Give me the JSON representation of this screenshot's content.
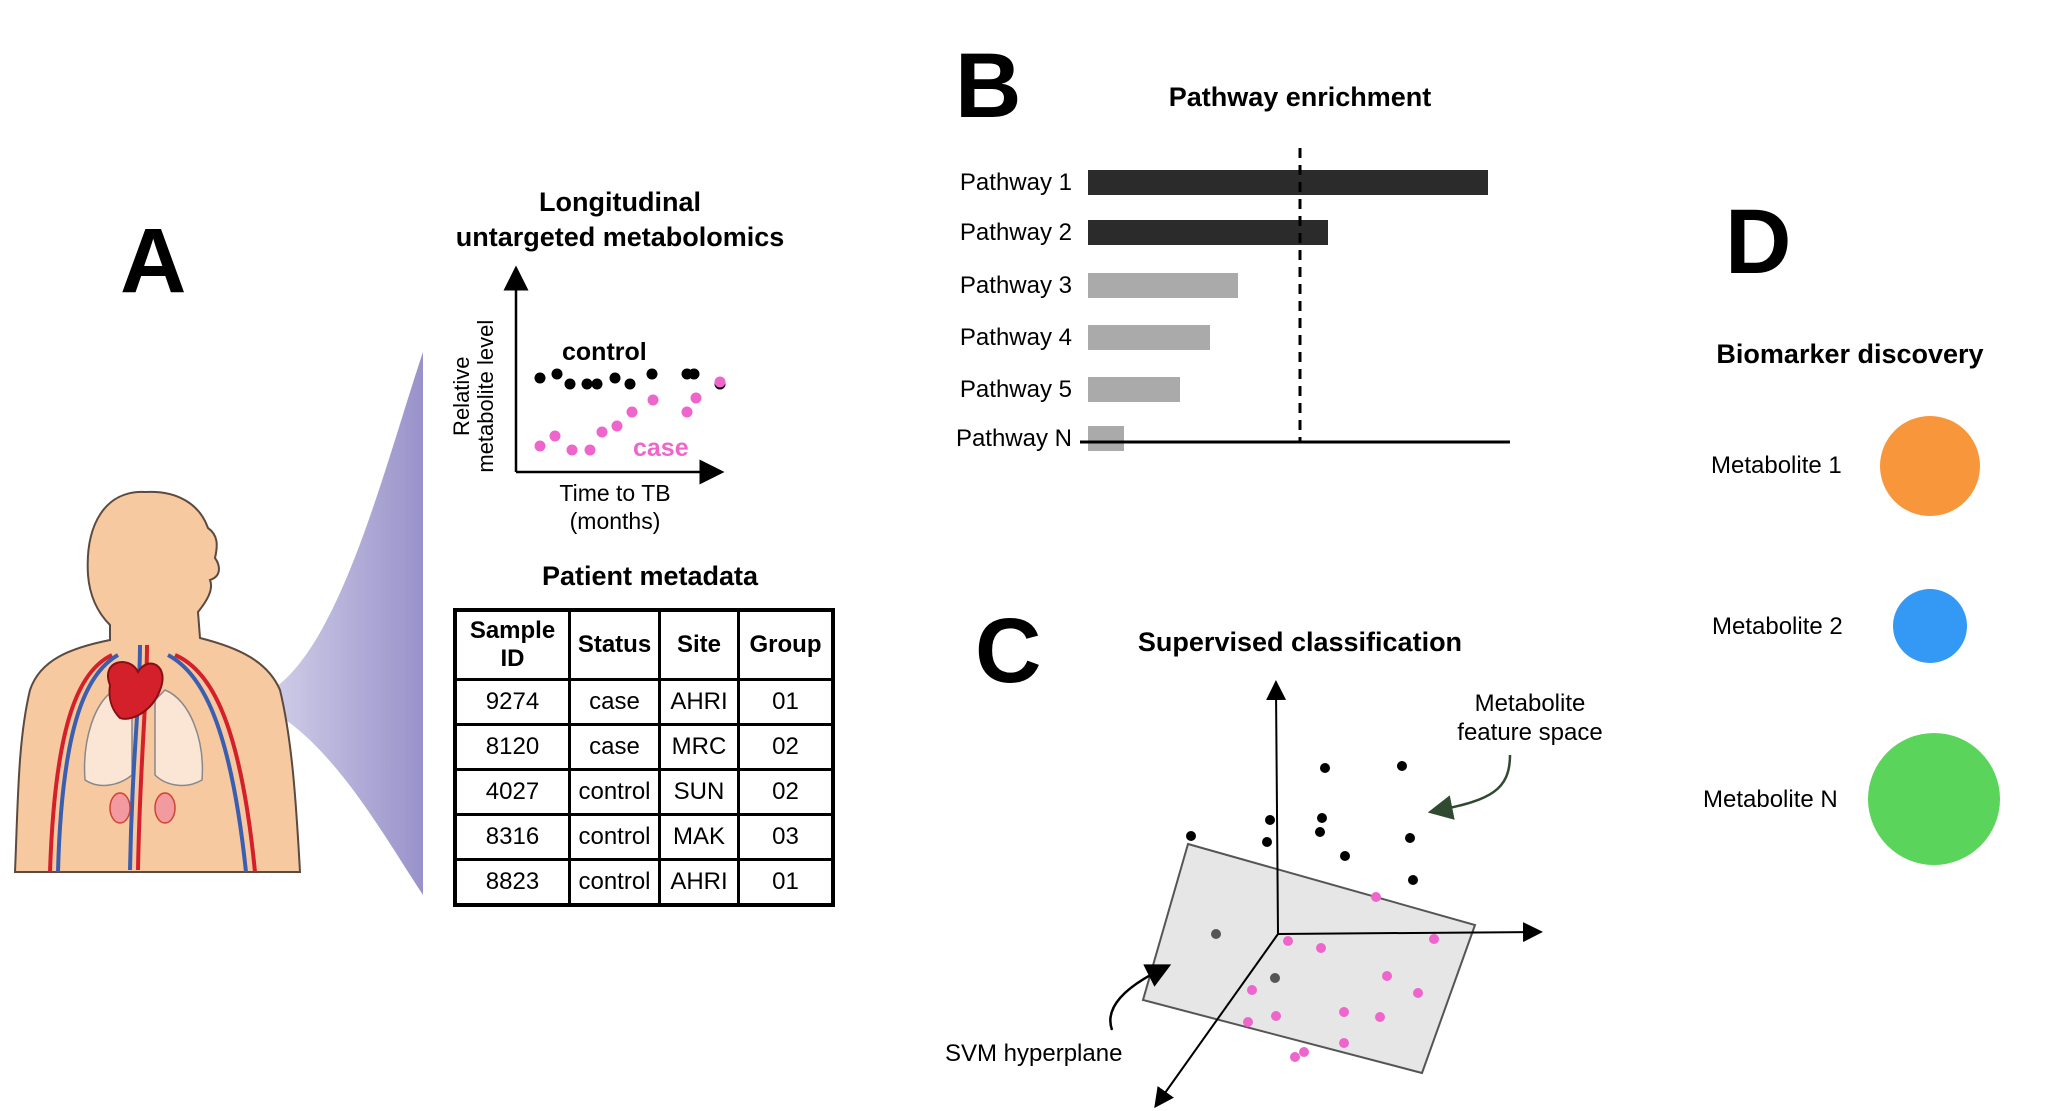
{
  "panel_a": {
    "letter": "A",
    "title_line1": "Longitudinal",
    "title_line2": "untargeted metabolomics",
    "plot": {
      "ylabel_line1": "Relative",
      "ylabel_line2": "metabolite level",
      "xlabel_line1": "Time to TB",
      "xlabel_line2": "(months)",
      "control_label": "control",
      "case_label": "case",
      "control_color": "#000000",
      "case_color": "#ee66cc"
    },
    "metadata_title": "Patient metadata",
    "table": {
      "headers": [
        "Sample ID",
        "Status",
        "Site",
        "Group"
      ],
      "rows": [
        [
          "9274",
          "case",
          "AHRI",
          "01"
        ],
        [
          "8120",
          "case",
          "MRC",
          "02"
        ],
        [
          "4027",
          "control",
          "SUN",
          "02"
        ],
        [
          "8316",
          "control",
          "MAK",
          "03"
        ],
        [
          "8823",
          "control",
          "AHRI",
          "01"
        ]
      ]
    }
  },
  "panel_b": {
    "letter": "B",
    "title": "Pathway enrichment",
    "pathways": [
      {
        "label": "Pathway 1",
        "value": 1.0,
        "color": "#2b2b2b"
      },
      {
        "label": "Pathway 2",
        "value": 0.6,
        "color": "#2b2b2b"
      },
      {
        "label": "Pathway 3",
        "value": 0.375,
        "color": "#aaaaaa"
      },
      {
        "label": "Pathway 4",
        "value": 0.305,
        "color": "#aaaaaa"
      },
      {
        "label": "Pathway 5",
        "value": 0.23,
        "color": "#aaaaaa"
      },
      {
        "label": "Pathway N",
        "value": 0.09,
        "color": "#aaaaaa"
      }
    ],
    "threshold": 0.53
  },
  "panel_c": {
    "letter": "C",
    "title": "Supervised classification",
    "feature_space_line1": "Metabolite",
    "feature_space_line2": "feature space",
    "hyperplane_label": "SVM hyperplane"
  },
  "panel_d": {
    "letter": "D",
    "title": "Biomarker discovery",
    "metabolites": [
      {
        "label": "Metabolite 1",
        "color": "#f7963a"
      },
      {
        "label": "Metabolite 2",
        "color": "#3399f5"
      },
      {
        "label": "Metabolite N",
        "color": "#5ad45a"
      }
    ]
  }
}
